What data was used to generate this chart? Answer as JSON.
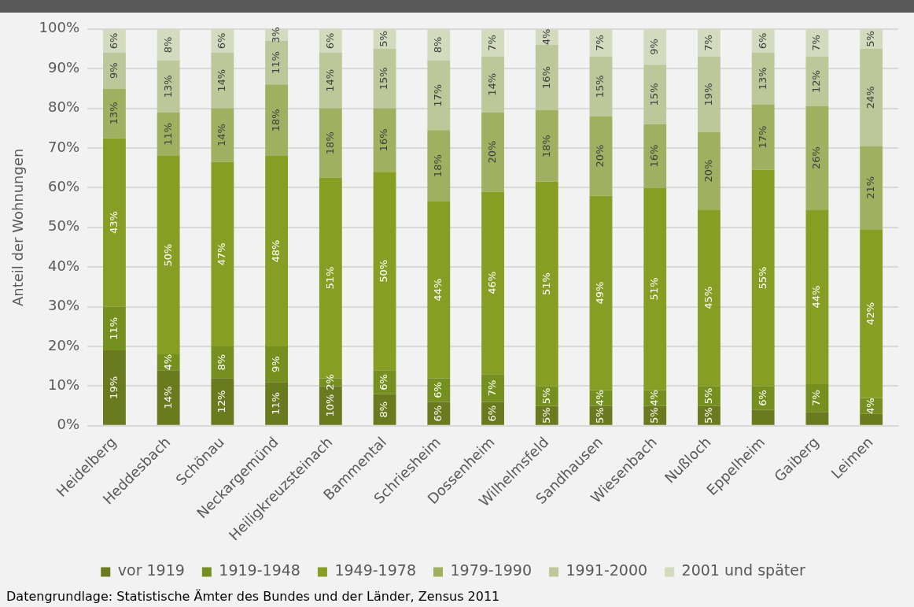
{
  "chart_data": {
    "type": "bar",
    "stacked": true,
    "ylabel": "Anteil der Wohnungen",
    "categories": [
      "Heidelberg",
      "Heddesbach",
      "Schönau",
      "Neckargemünd",
      "Heiligkreuzsteinach",
      "Bammental",
      "Schriesheim",
      "Dossenheim",
      "Wilhelmsfeld",
      "Sandhausen",
      "Wiesenbach",
      "Nußloch",
      "Eppelheim",
      "Gaiberg",
      "Leimen"
    ],
    "series": [
      {
        "name": "vor 1919",
        "color": "#6a7a1e",
        "values": [
          19,
          14,
          12,
          11,
          10,
          8,
          6,
          6,
          5,
          5,
          5,
          5,
          4,
          3.5,
          3
        ],
        "value_labels": [
          "19%",
          "14%",
          "12%",
          "11%",
          "10%",
          "8%",
          "6%",
          "6%",
          "5%",
          "5%",
          "5%",
          "5%",
          null,
          null,
          null
        ]
      },
      {
        "name": "1919-1948",
        "color": "#76901f",
        "values": [
          11,
          4,
          8,
          9,
          2,
          6,
          6,
          7,
          5,
          4,
          4,
          5,
          6,
          7,
          4
        ],
        "value_labels": [
          "11%",
          "4%",
          "8%",
          "9%",
          "2%",
          "6%",
          "6%",
          "7%",
          "5%",
          "4%",
          "4%",
          "5%",
          "6%",
          "7%",
          "4%"
        ]
      },
      {
        "name": "1949-1978",
        "color": "#879e24",
        "values": [
          42.5,
          50,
          46.5,
          48,
          50.5,
          50,
          44.5,
          46,
          51.5,
          49,
          51,
          44.5,
          54.5,
          44,
          42.5
        ],
        "value_labels": [
          "43%",
          "50%",
          "47%",
          "48%",
          "51%",
          "50%",
          "44%",
          "46%",
          "51%",
          "49%",
          "51%",
          "45%",
          "55%",
          "44%",
          "42%"
        ]
      },
      {
        "name": "1979-1990",
        "color": "#9fb161",
        "values": [
          12.5,
          11,
          13.5,
          18,
          17.5,
          16,
          18,
          20,
          18,
          20,
          16,
          19.5,
          16.5,
          26,
          21
        ],
        "value_labels": [
          "13%",
          "11%",
          "14%",
          "18%",
          "18%",
          "16%",
          "18%",
          "20%",
          "18%",
          "20%",
          "16%",
          "20%",
          "17%",
          "26%",
          "21%"
        ]
      },
      {
        "name": "1991-2000",
        "color": "#bcc89a",
        "values": [
          9,
          13,
          14,
          11,
          14,
          15,
          17.5,
          14,
          16.5,
          15,
          15,
          19,
          13,
          12.5,
          24.5
        ],
        "value_labels": [
          "9%",
          "13%",
          "14%",
          "11%",
          "14%",
          "15%",
          "17%",
          "14%",
          "16%",
          "15%",
          "15%",
          "19%",
          "13%",
          "12%",
          "24%"
        ]
      },
      {
        "name": "2001 und später",
        "color": "#d2dbbd",
        "values": [
          6,
          8,
          6,
          3,
          6,
          5,
          8,
          7,
          4,
          7,
          9,
          7,
          6,
          7,
          5
        ],
        "value_labels": [
          "6%",
          "8%",
          "6%",
          "3%",
          "6%",
          "5%",
          "8%",
          "7%",
          "4%",
          "7%",
          "9%",
          "7%",
          "6%",
          "7%",
          "5%"
        ]
      }
    ],
    "ylim": [
      0,
      100
    ],
    "yticks": [
      {
        "value": 0,
        "label": "0%"
      },
      {
        "value": 10,
        "label": "10%"
      },
      {
        "value": 20,
        "label": "20%"
      },
      {
        "value": 30,
        "label": "30%"
      },
      {
        "value": 40,
        "label": "40%"
      },
      {
        "value": 50,
        "label": "50%"
      },
      {
        "value": 60,
        "label": "60%"
      },
      {
        "value": 70,
        "label": "70%"
      },
      {
        "value": 80,
        "label": "80%"
      },
      {
        "value": 90,
        "label": "90%"
      },
      {
        "value": 100,
        "label": "100%"
      }
    ],
    "grid": "y",
    "legend": "bottom",
    "annotations": [
      "Datengrundlage: Statistische Ämter des Bundes und der Länder, Zensus 2011"
    ]
  }
}
